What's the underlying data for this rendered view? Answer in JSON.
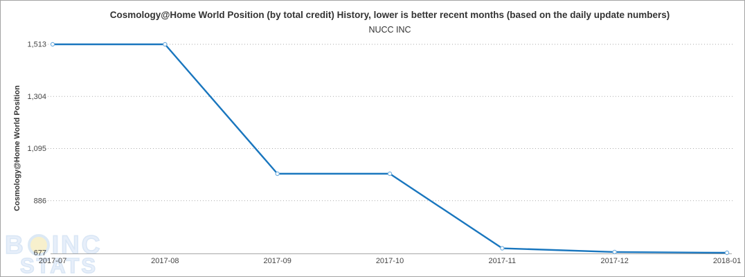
{
  "chart_data": {
    "type": "line",
    "title": "Cosmology@Home World Position (by total credit) History, lower is better recent months (based on the daily update numbers)",
    "subtitle": "NUCC INC",
    "ylabel": "Cosmology@Home World Position",
    "xlabel": "",
    "x": [
      "2017-07",
      "2017-08",
      "2017-09",
      "2017-10",
      "2017-11",
      "2017-12",
      "2018-01"
    ],
    "series": [
      {
        "name": "NUCC INC",
        "values": [
          1513,
          1513,
          994,
          994,
          695,
          680,
          677
        ]
      }
    ],
    "yticks": [
      677,
      886,
      1095,
      1304,
      1513
    ],
    "ylim": [
      677,
      1513
    ],
    "grid": "horizontal-dotted",
    "legend_position": "none",
    "colors": {
      "line": "#1976be",
      "marker_fill": "#ffffff",
      "marker_stroke": "#71aede",
      "grid": "#aaaaaa",
      "axis": "#a6a6a6",
      "tick_text": "#444444",
      "title_text": "#333333"
    }
  },
  "watermark": {
    "line1_left": "B",
    "line1_right": "INC",
    "line2": "STATS"
  }
}
